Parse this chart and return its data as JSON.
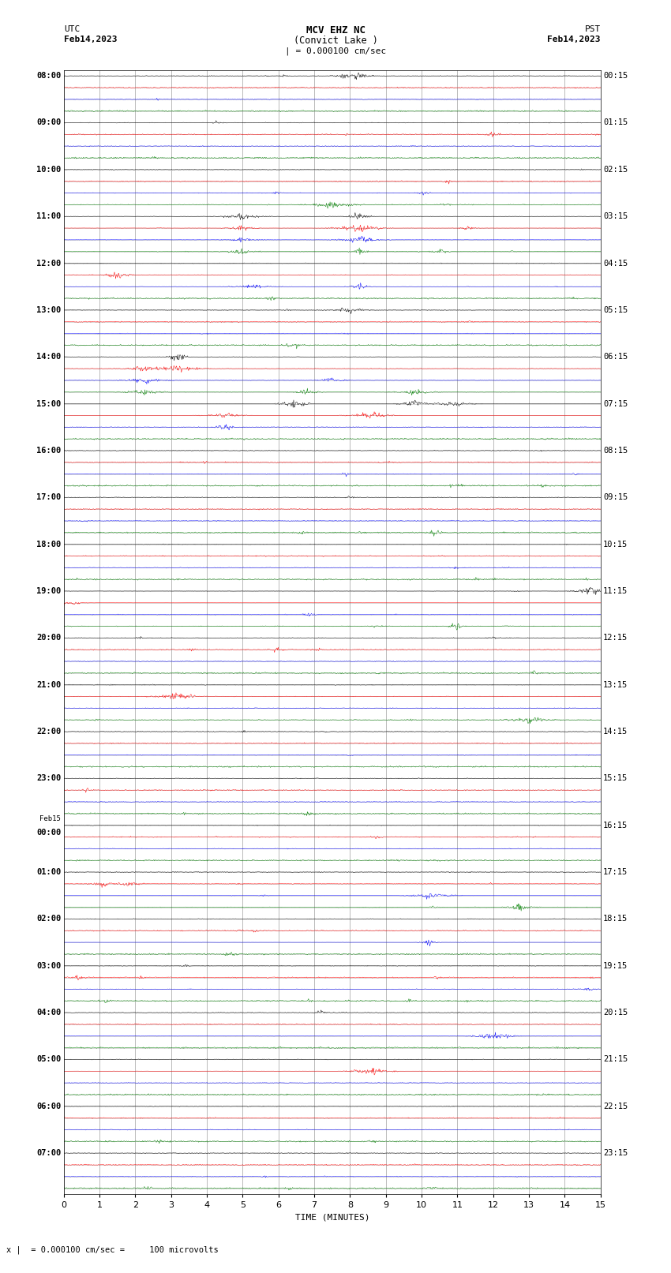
{
  "title_line1": "MCV EHZ NC",
  "title_line2": "(Convict Lake )",
  "title_line3": "| = 0.000100 cm/sec",
  "utc_label": "UTC",
  "utc_date": "Feb14,2023",
  "pst_label": "PST",
  "pst_date": "Feb14,2023",
  "xlabel": "TIME (MINUTES)",
  "bottom_label": "x |  = 0.000100 cm/sec =     100 microvolts",
  "x_ticks": [
    0,
    1,
    2,
    3,
    4,
    5,
    6,
    7,
    8,
    9,
    10,
    11,
    12,
    13,
    14,
    15
  ],
  "left_times": [
    "08:00",
    "09:00",
    "10:00",
    "11:00",
    "12:00",
    "13:00",
    "14:00",
    "15:00",
    "16:00",
    "17:00",
    "18:00",
    "19:00",
    "20:00",
    "21:00",
    "22:00",
    "23:00",
    "Feb15\n00:00",
    "01:00",
    "02:00",
    "03:00",
    "04:00",
    "05:00",
    "06:00",
    "07:00"
  ],
  "right_times": [
    "00:15",
    "01:15",
    "02:15",
    "03:15",
    "04:15",
    "05:15",
    "06:15",
    "07:15",
    "08:15",
    "09:15",
    "10:15",
    "11:15",
    "12:15",
    "13:15",
    "14:15",
    "15:15",
    "16:15",
    "17:15",
    "18:15",
    "19:15",
    "20:15",
    "21:15",
    "22:15",
    "23:15"
  ],
  "n_rows": 24,
  "traces_per_row": 4,
  "trace_colors": [
    "black",
    "red",
    "blue",
    "green"
  ],
  "bg_color": "white",
  "grid_color": "#888888",
  "seed": 42
}
